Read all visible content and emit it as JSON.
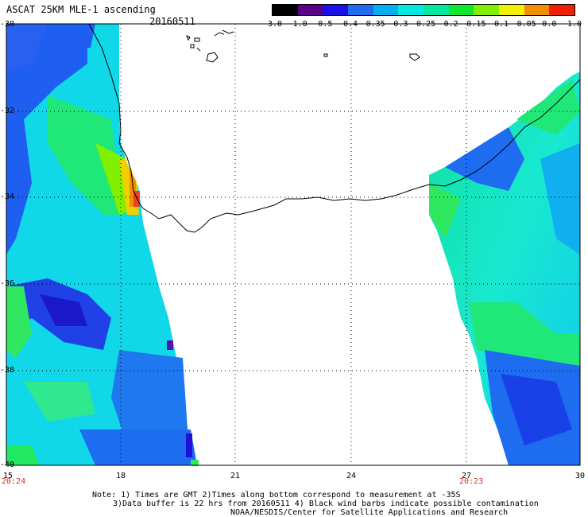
{
  "header": {
    "title": "ASCAT 25KM MLE-1 ascending",
    "date": "20160511"
  },
  "colorbar": {
    "ticks": [
      "-3.0",
      "-1.0",
      "-0.5",
      "-0.4",
      "-0.35",
      "-0.3",
      "-0.25",
      "-0.2",
      "-0.15",
      "-0.1",
      "-0.05",
      "0.0",
      "1.0"
    ],
    "colors": [
      "#000000",
      "#5a0088",
      "#1a10e8",
      "#1e6cf0",
      "#00b0f0",
      "#00e8e0",
      "#00e8a0",
      "#10e830",
      "#80f000",
      "#f0f000",
      "#f09000",
      "#f02000"
    ]
  },
  "map": {
    "lat_labels": [
      "-30",
      "-32",
      "-34",
      "-36",
      "-38",
      "-40"
    ],
    "lon_labels": [
      "15",
      "18",
      "21",
      "24",
      "27",
      "30"
    ],
    "left_time": "20:24",
    "right_time": "20:23"
  },
  "notes": {
    "line1": "Note: 1) Times are GMT 2)Times along bottom correspond to measurement at -35S",
    "line2": "3)Data buffer is 22 hrs from 20160511 4) Black wind barbs indicate possible contamination",
    "line3": "NOAA/NESDIS/Center for Satellite Applications and Research"
  }
}
